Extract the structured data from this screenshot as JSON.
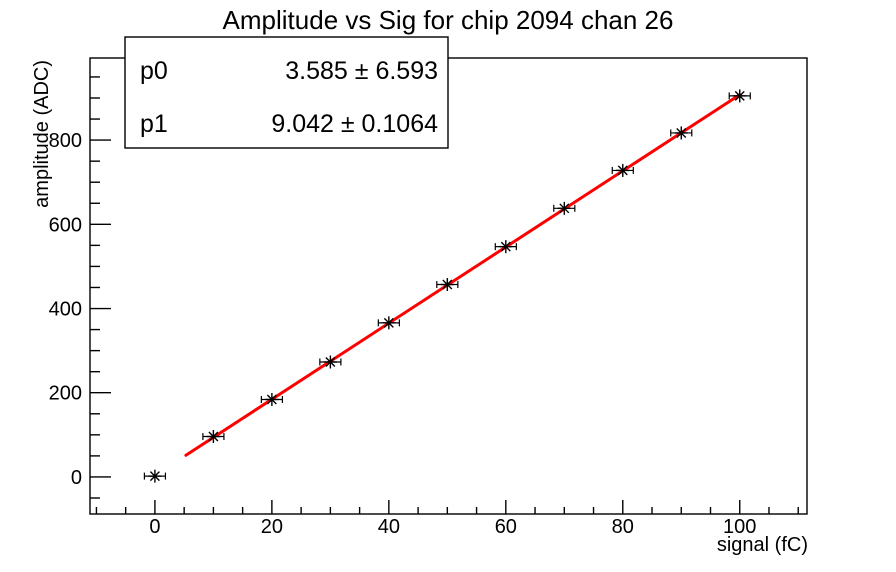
{
  "chart_data": {
    "type": "scatter",
    "title": "Amplitude vs Sig for chip 2094 chan 26",
    "xlabel": "signal (fC)",
    "ylabel": "amplitude (ADC)",
    "xlim": [
      -11.1,
      111.5
    ],
    "ylim": [
      -88,
      995
    ],
    "grid": false,
    "x_major_ticks": [
      0,
      20,
      40,
      60,
      80,
      100
    ],
    "x_minor_step": 5,
    "y_major_ticks": [
      0,
      200,
      400,
      600,
      800
    ],
    "y_minor_step": 50,
    "points": {
      "x": [
        0,
        10,
        20,
        30,
        40,
        50,
        60,
        70,
        80,
        90,
        100
      ],
      "y": [
        2,
        96,
        184,
        273,
        366,
        457,
        547,
        638,
        728,
        817,
        905
      ],
      "x_error": 1.8,
      "marker": "asterisk",
      "marker_color": "#000000"
    },
    "fit": {
      "p0": 3.585,
      "p1": 9.042,
      "x_range": [
        5.3,
        100
      ],
      "color": "#ff0000"
    },
    "stats_box": {
      "rows": [
        {
          "label": "p0",
          "value": "3.585 ± 6.593"
        },
        {
          "label": "p1",
          "value": "9.042 ± 0.1064"
        }
      ]
    },
    "colors": {
      "axis": "#000000",
      "background": "#ffffff",
      "fit_line": "#ff0000"
    }
  }
}
